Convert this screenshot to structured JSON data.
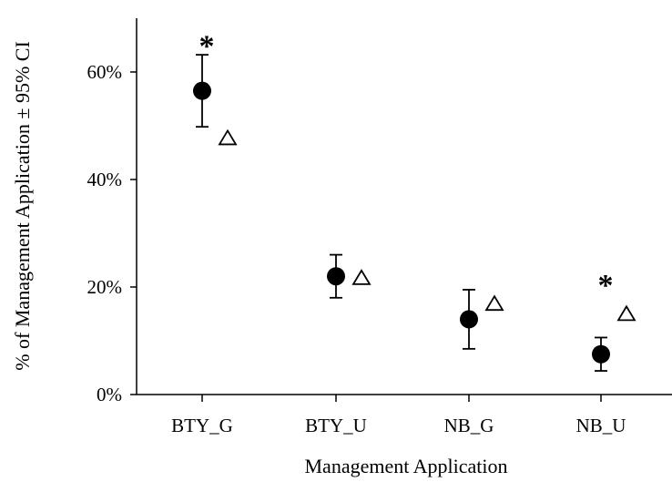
{
  "chart_data": {
    "type": "scatter",
    "xlabel": "Management Application",
    "ylabel": "% of Management Application ± 95% CI",
    "categories": [
      "BTY_G",
      "BTY_U",
      "NB_G",
      "NB_U"
    ],
    "ylim": [
      0,
      70
    ],
    "yticks": [
      0,
      20,
      40,
      60
    ],
    "ytick_labels": [
      "0%",
      "20%",
      "40%",
      "60%"
    ],
    "grid": false,
    "legend": "none",
    "series": [
      {
        "marker": "filled-circle",
        "color": "#000000",
        "values": [
          56.5,
          22.0,
          14.0,
          7.5
        ],
        "ci_low": [
          49.8,
          18.0,
          8.5,
          4.4
        ],
        "ci_high": [
          63.2,
          26.0,
          19.5,
          10.6
        ]
      },
      {
        "marker": "open-triangle",
        "color": "#000000",
        "values": [
          47.5,
          21.5,
          16.7,
          14.8
        ]
      }
    ],
    "annotations": [
      {
        "text": "*",
        "category": "BTY_G",
        "y": 66
      },
      {
        "text": "*",
        "category": "NB_U",
        "y": 21.5
      }
    ]
  }
}
